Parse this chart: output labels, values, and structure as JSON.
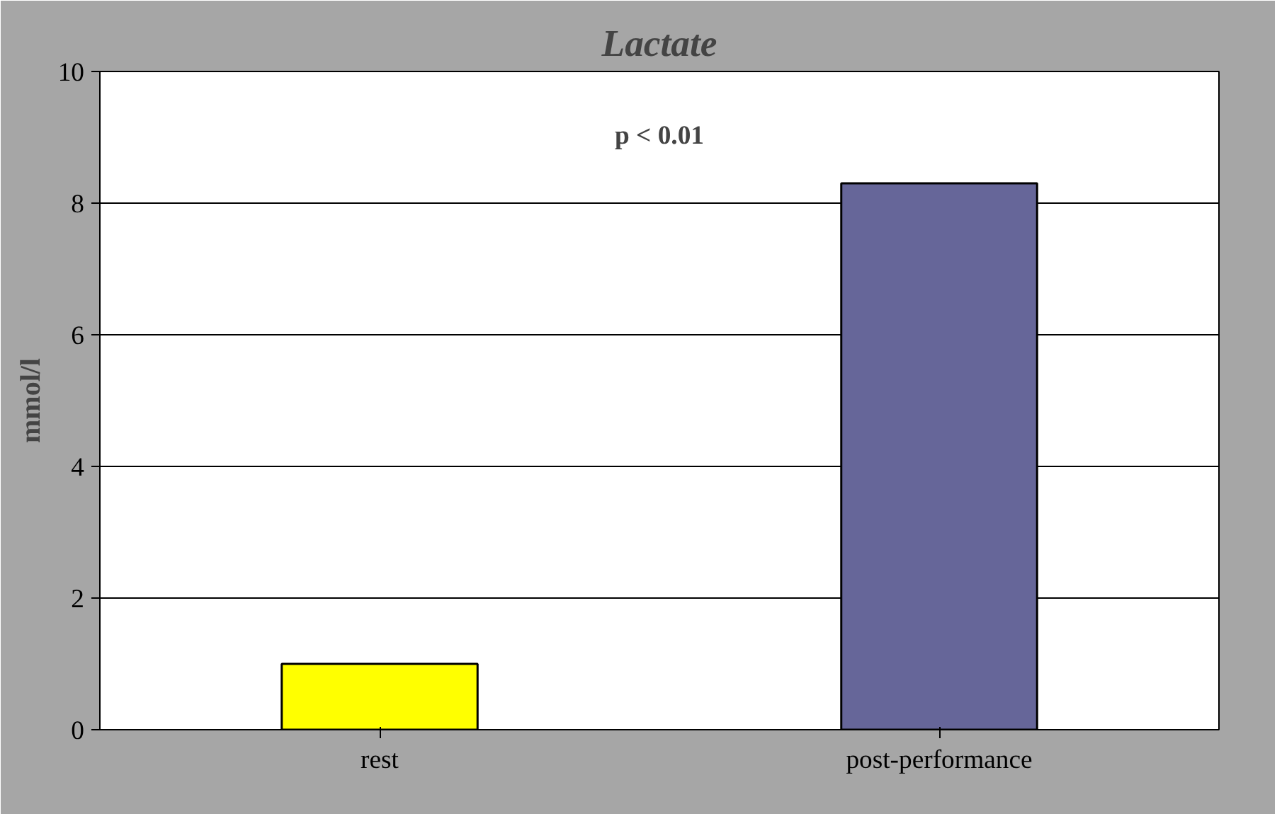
{
  "chart_data": {
    "type": "bar",
    "title": "Lactate",
    "ylabel": "mmol/l",
    "categories": [
      "rest",
      "post-performance"
    ],
    "values": [
      1.0,
      8.3
    ],
    "colors": [
      "#ffff00",
      "#666699"
    ],
    "ylim": [
      0,
      10
    ],
    "yticks": [
      0,
      2,
      4,
      6,
      8,
      10
    ],
    "grid": "y",
    "annotations": [
      "p < 0.01"
    ]
  }
}
